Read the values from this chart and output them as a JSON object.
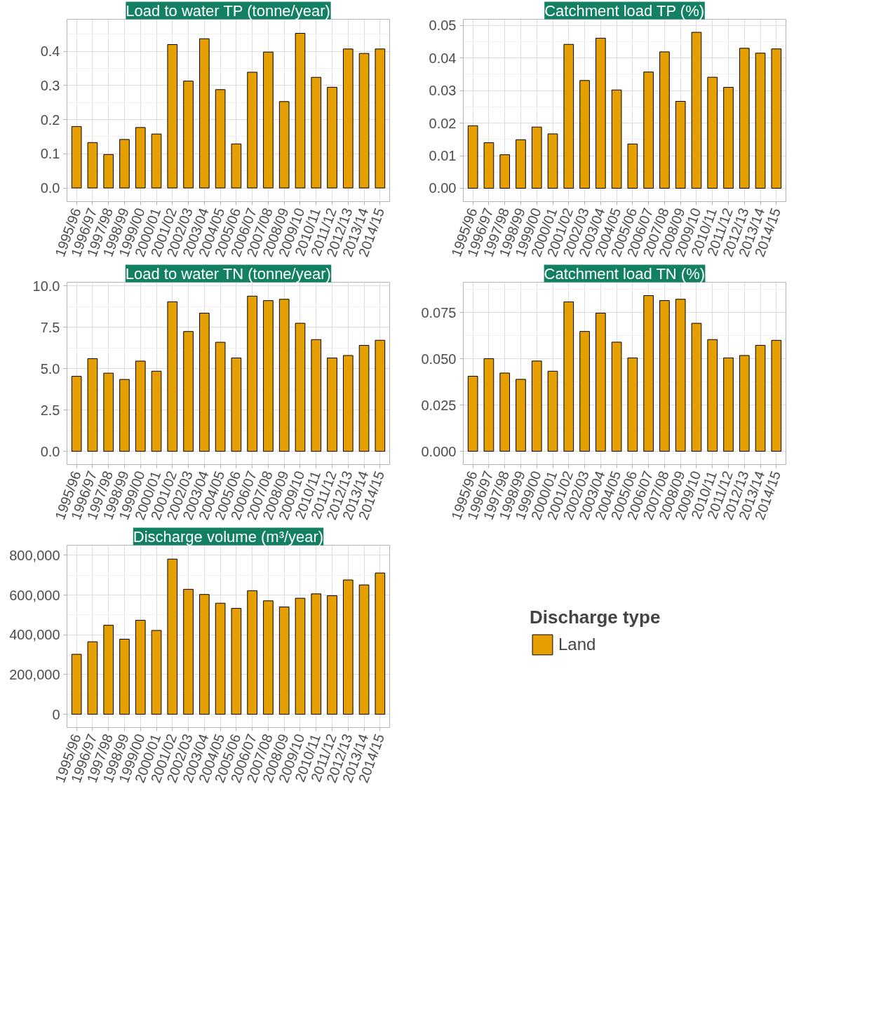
{
  "chart_data": [
    {
      "type": "bar",
      "title": "Load to water TP (tonne/year)",
      "categories": [
        "1995/96",
        "1996/97",
        "1997/98",
        "1998/99",
        "1999/00",
        "2000/01",
        "2001/02",
        "2002/03",
        "2003/04",
        "2004/05",
        "2005/06",
        "2006/07",
        "2007/08",
        "2008/09",
        "2009/10",
        "2010/11",
        "2011/12",
        "2012/13",
        "2013/14",
        "2014/15"
      ],
      "series": [
        {
          "color": "#e69f00",
          "values": [
            0.18,
            0.133,
            0.098,
            0.142,
            0.177,
            0.158,
            0.42,
            0.313,
            0.437,
            0.288,
            0.129,
            0.339,
            0.398,
            0.253,
            0.453,
            0.324,
            0.295,
            0.407,
            0.394,
            0.407
          ]
        }
      ],
      "ylim": [
        -0.04,
        0.494
      ],
      "yticks": [
        {
          "value": 0,
          "label": "0.0"
        },
        {
          "value": 0.1,
          "label": "0.1"
        },
        {
          "value": 0.2,
          "label": "0.2"
        },
        {
          "value": 0.3,
          "label": "0.3"
        },
        {
          "value": 0.4,
          "label": "0.4"
        }
      ],
      "grid": true,
      "legend": false
    },
    {
      "type": "bar",
      "title": "Catchment load TP (%)",
      "categories": [
        "1995/96",
        "1996/97",
        "1997/98",
        "1998/99",
        "1999/00",
        "2000/01",
        "2001/02",
        "2002/03",
        "2003/04",
        "2004/05",
        "2005/06",
        "2006/07",
        "2007/08",
        "2008/09",
        "2009/10",
        "2010/11",
        "2011/12",
        "2012/13",
        "2013/14",
        "2014/15"
      ],
      "series": [
        {
          "color": "#e69f00",
          "values": [
            0.0192,
            0.014,
            0.0103,
            0.0149,
            0.0188,
            0.0167,
            0.0442,
            0.0331,
            0.0461,
            0.0302,
            0.0136,
            0.0357,
            0.0419,
            0.0267,
            0.0479,
            0.0341,
            0.031,
            0.043,
            0.0415,
            0.0428
          ]
        }
      ],
      "ylim": [
        -0.0041,
        0.0519
      ],
      "yticks": [
        {
          "value": 0,
          "label": "0.00"
        },
        {
          "value": 0.01,
          "label": "0.01"
        },
        {
          "value": 0.02,
          "label": "0.02"
        },
        {
          "value": 0.03,
          "label": "0.03"
        },
        {
          "value": 0.04,
          "label": "0.04"
        },
        {
          "value": 0.05,
          "label": "0.05"
        }
      ],
      "grid": true,
      "legend": false
    },
    {
      "type": "bar",
      "title": "Load to water TN (tonne/year)",
      "categories": [
        "1995/96",
        "1996/97",
        "1997/98",
        "1998/99",
        "1999/00",
        "2000/01",
        "2001/02",
        "2002/03",
        "2003/04",
        "2004/05",
        "2005/06",
        "2006/07",
        "2007/08",
        "2008/09",
        "2009/10",
        "2010/11",
        "2011/12",
        "2012/13",
        "2013/14",
        "2014/15"
      ],
      "series": [
        {
          "color": "#e69f00",
          "values": [
            4.54,
            5.61,
            4.73,
            4.35,
            5.46,
            4.85,
            9.05,
            7.25,
            8.36,
            6.6,
            5.65,
            9.39,
            9.12,
            9.2,
            7.75,
            6.76,
            5.65,
            5.8,
            6.41,
            6.72
          ]
        }
      ],
      "ylim": [
        -0.8,
        10.23
      ],
      "yticks": [
        {
          "value": 0,
          "label": "0.0"
        },
        {
          "value": 2.5,
          "label": "2.5"
        },
        {
          "value": 5,
          "label": "5.0"
        },
        {
          "value": 7.5,
          "label": "7.5"
        },
        {
          "value": 10,
          "label": "10.0"
        }
      ],
      "grid": true,
      "legend": false
    },
    {
      "type": "bar",
      "title": "Catchment load TN (%)",
      "categories": [
        "1995/96",
        "1996/97",
        "1997/98",
        "1998/99",
        "1999/00",
        "2000/01",
        "2001/02",
        "2002/03",
        "2003/04",
        "2004/05",
        "2005/06",
        "2006/07",
        "2007/08",
        "2008/09",
        "2009/10",
        "2010/11",
        "2011/12",
        "2012/13",
        "2013/14",
        "2014/15"
      ],
      "series": [
        {
          "color": "#e69f00",
          "values": [
            0.0406,
            0.0501,
            0.0423,
            0.0389,
            0.0488,
            0.0433,
            0.0808,
            0.0648,
            0.0747,
            0.059,
            0.0505,
            0.0842,
            0.0815,
            0.0822,
            0.0692,
            0.0604,
            0.0505,
            0.0518,
            0.0573,
            0.06
          ]
        }
      ],
      "ylim": [
        -0.0072,
        0.0914
      ],
      "yticks": [
        {
          "value": 0,
          "label": "0.000"
        },
        {
          "value": 0.025,
          "label": "0.025"
        },
        {
          "value": 0.05,
          "label": "0.050"
        },
        {
          "value": 0.075,
          "label": "0.075"
        }
      ],
      "grid": true,
      "legend": false
    },
    {
      "type": "bar",
      "title": "Discharge volume (m³/year)",
      "legend_title": "Discharge type",
      "categories": [
        "1995/96",
        "1996/97",
        "1997/98",
        "1998/99",
        "1999/00",
        "2000/01",
        "2001/02",
        "2002/03",
        "2003/04",
        "2004/05",
        "2005/06",
        "2006/07",
        "2007/08",
        "2008/09",
        "2009/10",
        "2010/11",
        "2011/12",
        "2012/13",
        "2013/14",
        "2014/15"
      ],
      "series": [
        {
          "name": "Land",
          "color": "#e69f00",
          "values": [
            302000,
            365000,
            448000,
            378000,
            473000,
            422000,
            781000,
            629000,
            603000,
            559000,
            533000,
            622000,
            571000,
            540000,
            584000,
            606000,
            597000,
            676000,
            651000,
            711000
          ]
        }
      ],
      "ylim": [
        -66700,
        850800
      ],
      "yticks": [
        {
          "value": 0,
          "label": "0"
        },
        {
          "value": 200000,
          "label": "200,000"
        },
        {
          "value": 400000,
          "label": "400,000"
        },
        {
          "value": 600000,
          "label": "600,000"
        },
        {
          "value": 800000,
          "label": "800,000"
        }
      ],
      "grid": true,
      "legend": "right"
    }
  ]
}
